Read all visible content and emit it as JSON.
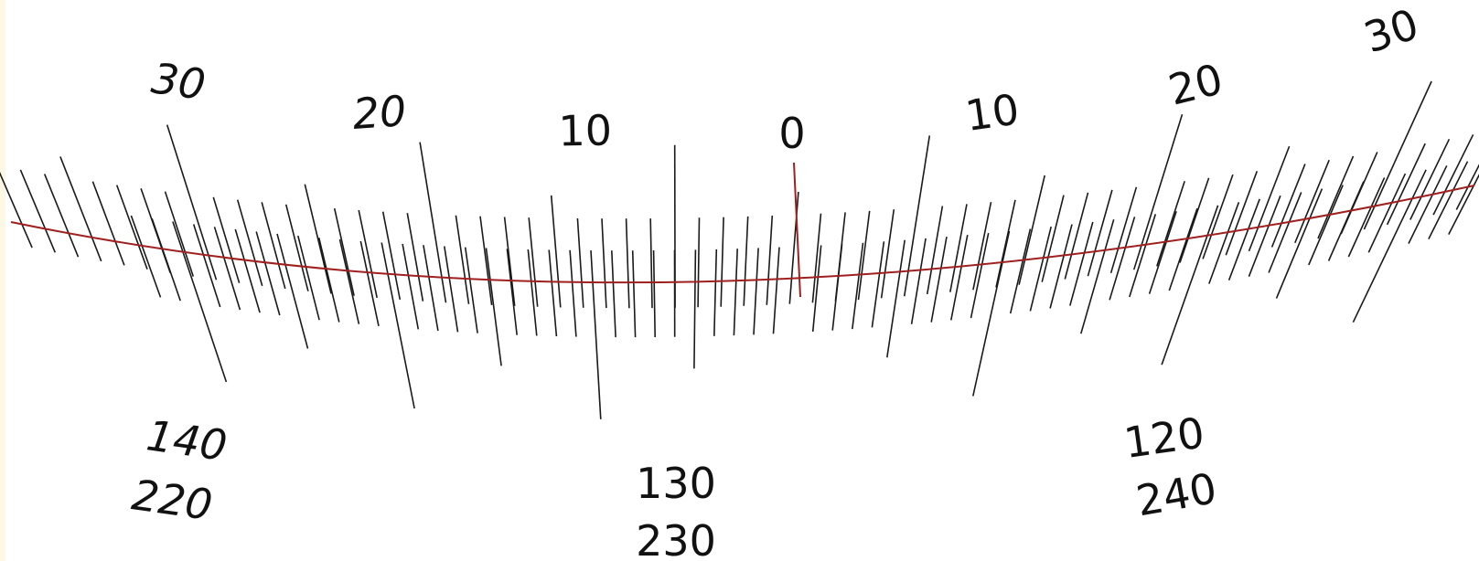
{
  "scale": {
    "index_mark": "0",
    "upper_left": [
      "10",
      "20",
      "30"
    ],
    "upper_right": [
      "10",
      "20",
      "30"
    ],
    "lower_left": {
      "outer": "140",
      "inner": "220"
    },
    "lower_center": {
      "outer": "130",
      "inner": "230"
    },
    "lower_right": {
      "outer": "120",
      "inner": "240"
    }
  },
  "colors": {
    "ticks": "#1a1a1a",
    "index_and_arc": "#a02020",
    "edge_tint": "#fdf8e6"
  }
}
